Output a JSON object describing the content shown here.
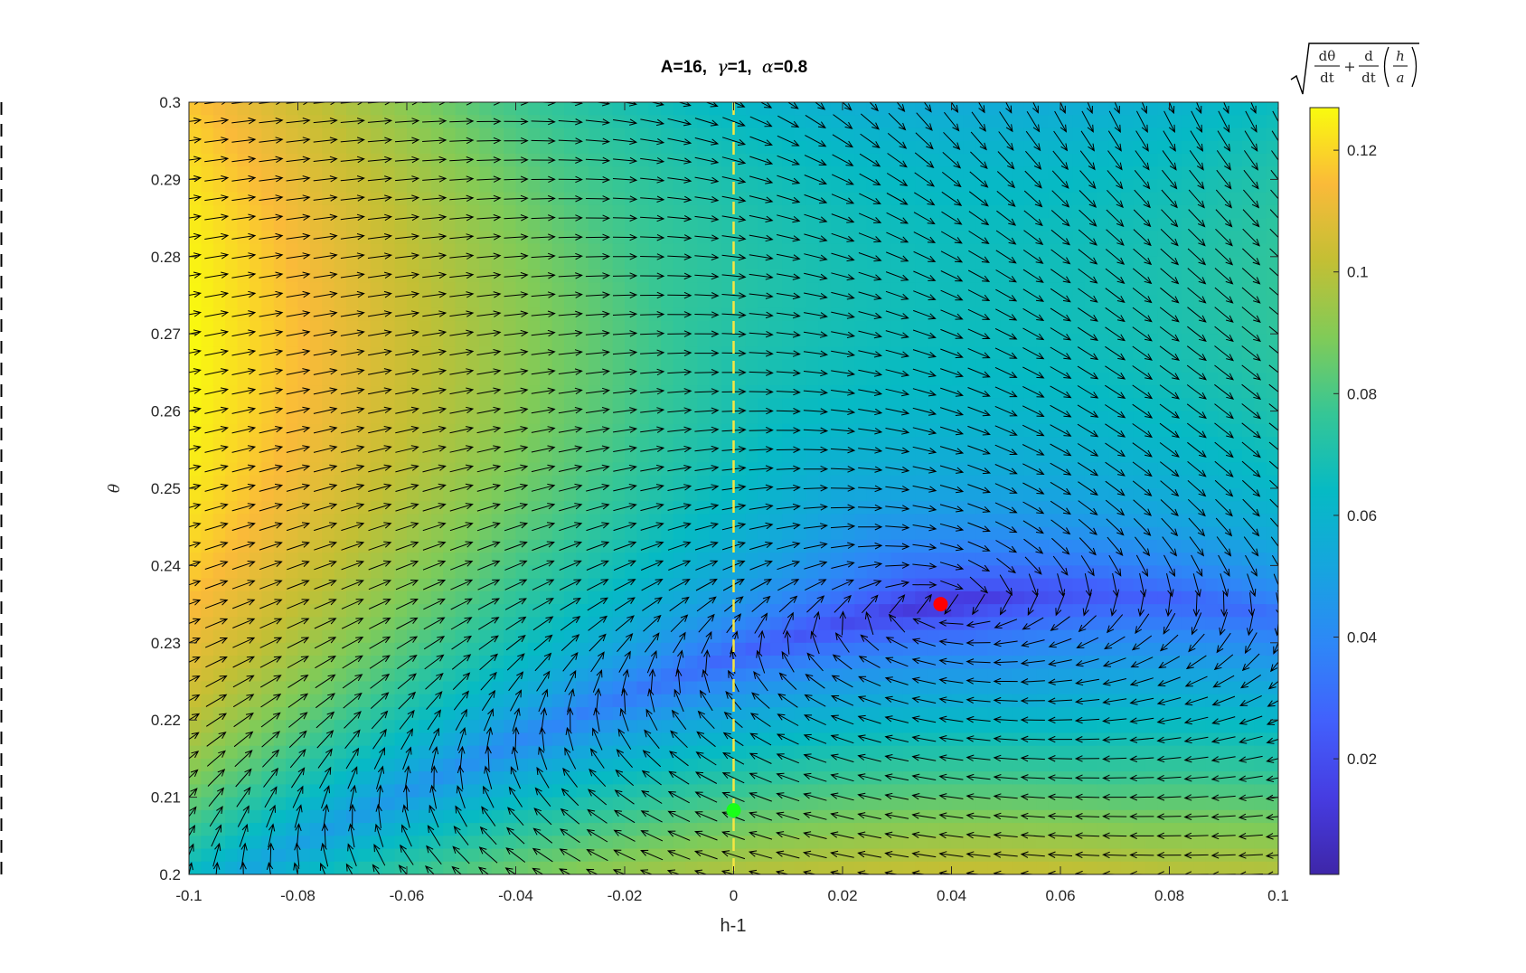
{
  "chart_data": {
    "type": "quiver",
    "title": {
      "prefix": "A=16,",
      "gamma_symbol": "γ",
      "gamma_value": "=1,",
      "alpha_symbol": "α",
      "alpha_value": "=0.8"
    },
    "xlabel": "h-1",
    "ylabel": "θ",
    "xlim": [
      -0.1,
      0.1
    ],
    "ylim": [
      0.2,
      0.3
    ],
    "xticks": [
      -0.1,
      -0.08,
      -0.06,
      -0.04,
      -0.02,
      0,
      0.02,
      0.04,
      0.06,
      0.08,
      0.1
    ],
    "xtick_labels": [
      "-0.1",
      "-0.08",
      "-0.06",
      "-0.04",
      "-0.02",
      "0",
      "0.02",
      "0.04",
      "0.06",
      "0.08",
      "0.1"
    ],
    "yticks": [
      0.2,
      0.21,
      0.22,
      0.23,
      0.24,
      0.25,
      0.26,
      0.27,
      0.28,
      0.29,
      0.3
    ],
    "ytick_labels": [
      "0.2",
      "0.21",
      "0.22",
      "0.23",
      "0.24",
      "0.25",
      "0.26",
      "0.27",
      "0.28",
      "0.29",
      "0.3"
    ],
    "grid": false,
    "colormap": "parula",
    "colorbar": {
      "label_sqrt": "√",
      "label_frac1_num": "dθ",
      "label_frac1_den": "dt",
      "label_plus": "+",
      "label_frac2_num": "d",
      "label_frac2_den": "dt",
      "label_inner_num": "h",
      "label_inner_den": "a",
      "range": [
        0.001,
        0.127
      ],
      "ticks": [
        0.02,
        0.04,
        0.06,
        0.08,
        0.1,
        0.12
      ],
      "tick_labels": [
        "0.02",
        "0.04",
        "0.06",
        "0.08",
        "0.1",
        "0.12"
      ]
    },
    "vertical_line": {
      "x": 0,
      "color": "#f5e642",
      "style": "dashed"
    },
    "points": [
      {
        "x": 0.038,
        "y": 0.235,
        "color": "#ff0000"
      },
      {
        "x": 0.0,
        "y": 0.2083,
        "color": "#19ff19"
      }
    ],
    "grid_nx": 40,
    "grid_ny": 40
  }
}
